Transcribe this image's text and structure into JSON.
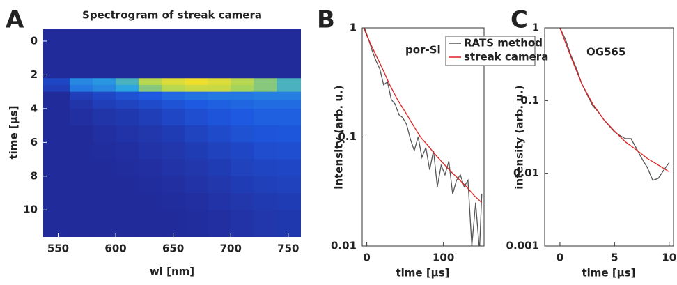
{
  "chart_data": [
    {
      "type": "heatmap",
      "panel_label": "A",
      "title": "Spectrogram of streak camera",
      "x_label": "wl [nm]",
      "y_label": "time [µs]",
      "xlim": [
        537,
        761
      ],
      "ylim": [
        11.6,
        -0.7
      ],
      "xticks": [
        550,
        600,
        650,
        700,
        750
      ],
      "yticks": [
        0,
        2,
        4,
        6,
        8,
        10
      ],
      "x_edges": [
        537,
        560,
        580,
        600,
        620,
        640,
        660,
        680,
        700,
        720,
        740,
        761
      ],
      "y_edges": [
        -0.7,
        2.2,
        2.6,
        3.0,
        3.5,
        4,
        5,
        6,
        7,
        8,
        9,
        10,
        11.6
      ],
      "z": [
        [
          0.05,
          0.05,
          0.05,
          0.05,
          0.05,
          0.05,
          0.05,
          0.05,
          0.05,
          0.05,
          0.05
        ],
        [
          0.2,
          0.45,
          0.5,
          0.6,
          0.8,
          0.9,
          0.95,
          0.9,
          0.8,
          0.7,
          0.6
        ],
        [
          0.15,
          0.4,
          0.45,
          0.55,
          0.7,
          0.8,
          0.85,
          0.85,
          0.75,
          0.7,
          0.6
        ],
        [
          0.05,
          0.15,
          0.2,
          0.25,
          0.3,
          0.35,
          0.38,
          0.4,
          0.4,
          0.42,
          0.42
        ],
        [
          0.05,
          0.1,
          0.15,
          0.18,
          0.22,
          0.26,
          0.3,
          0.32,
          0.34,
          0.36,
          0.36
        ],
        [
          0.05,
          0.07,
          0.1,
          0.12,
          0.15,
          0.2,
          0.24,
          0.27,
          0.3,
          0.32,
          0.32
        ],
        [
          0.05,
          0.05,
          0.07,
          0.09,
          0.11,
          0.14,
          0.18,
          0.22,
          0.25,
          0.27,
          0.28
        ],
        [
          0.05,
          0.05,
          0.06,
          0.07,
          0.09,
          0.11,
          0.14,
          0.17,
          0.2,
          0.23,
          0.24
        ],
        [
          0.05,
          0.05,
          0.05,
          0.06,
          0.07,
          0.09,
          0.11,
          0.14,
          0.17,
          0.19,
          0.2
        ],
        [
          0.05,
          0.05,
          0.05,
          0.05,
          0.06,
          0.07,
          0.09,
          0.11,
          0.14,
          0.16,
          0.17
        ],
        [
          0.05,
          0.05,
          0.05,
          0.05,
          0.05,
          0.06,
          0.07,
          0.09,
          0.11,
          0.13,
          0.14
        ],
        [
          0.05,
          0.05,
          0.05,
          0.05,
          0.05,
          0.05,
          0.06,
          0.07,
          0.09,
          0.11,
          0.12
        ]
      ]
    },
    {
      "type": "line",
      "panel_label": "B",
      "annotation": "por-Si",
      "log_y": true,
      "x_label": "time [µs]",
      "y_label": "intensity (arb. u.)",
      "xlim": [
        -6,
        153
      ],
      "ylim": [
        0.01,
        1
      ],
      "xticks": [
        0,
        100
      ],
      "yticks": [
        0.01,
        0.1,
        1
      ],
      "series": [
        {
          "name": "RATS method",
          "color": "#555555",
          "x": [
            -3,
            2,
            7,
            12,
            17,
            22,
            27,
            32,
            37,
            42,
            47,
            52,
            57,
            62,
            67,
            72,
            77,
            82,
            87,
            92,
            97,
            102,
            107,
            112,
            117,
            122,
            127,
            132,
            137,
            142,
            147,
            150
          ],
          "values": [
            1.0,
            0.8,
            0.62,
            0.5,
            0.42,
            0.3,
            0.32,
            0.22,
            0.2,
            0.16,
            0.15,
            0.13,
            0.095,
            0.075,
            0.1,
            0.065,
            0.08,
            0.05,
            0.075,
            0.035,
            0.055,
            0.045,
            0.06,
            0.03,
            0.04,
            0.045,
            0.035,
            0.04,
            0.01,
            0.025,
            0.009,
            0.03
          ]
        },
        {
          "name": "streak camera",
          "color": "#e02020",
          "x": [
            -4,
            0,
            10,
            20,
            30,
            40,
            50,
            60,
            70,
            80,
            90,
            100,
            110,
            120,
            130,
            140,
            150
          ],
          "values": [
            1.0,
            0.85,
            0.6,
            0.43,
            0.3,
            0.22,
            0.17,
            0.13,
            0.1,
            0.083,
            0.068,
            0.057,
            0.048,
            0.041,
            0.035,
            0.029,
            0.025
          ]
        }
      ]
    },
    {
      "type": "line",
      "panel_label": "C",
      "annotation": "OG565",
      "log_y": true,
      "x_label": "time [µs]",
      "y_label": "intensity (arb. u.)",
      "xlim": [
        -1.4,
        10.4
      ],
      "ylim": [
        0.001,
        1
      ],
      "xticks": [
        0,
        5,
        10
      ],
      "yticks": [
        0.001,
        0.01,
        0.1,
        1
      ],
      "series": [
        {
          "color": "#555555",
          "x": [
            0,
            0.5,
            1,
            1.5,
            2,
            2.5,
            3,
            3.5,
            4,
            4.5,
            5,
            5.5,
            6,
            6.5,
            7,
            7.5,
            8,
            8.5,
            9,
            9.5,
            10
          ],
          "values": [
            1,
            0.7,
            0.42,
            0.28,
            0.17,
            0.12,
            0.085,
            0.07,
            0.055,
            0.045,
            0.037,
            0.033,
            0.03,
            0.03,
            0.022,
            0.016,
            0.012,
            0.008,
            0.0085,
            0.011,
            0.014
          ]
        },
        {
          "color": "#e02020",
          "x": [
            0,
            1,
            2,
            3,
            4,
            5,
            6,
            7,
            8,
            9,
            10
          ],
          "values": [
            1,
            0.4,
            0.17,
            0.09,
            0.055,
            0.038,
            0.027,
            0.021,
            0.016,
            0.013,
            0.0105
          ]
        }
      ]
    }
  ]
}
